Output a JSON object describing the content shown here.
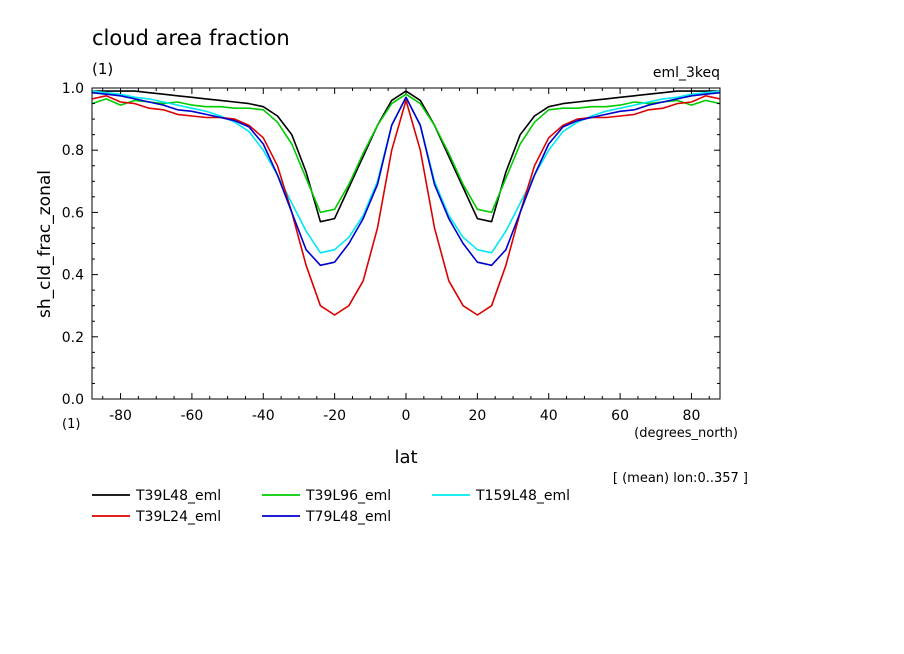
{
  "chart_data": {
    "type": "line",
    "title": "cloud area fraction",
    "subtitle": "(1)",
    "experiment": "eml_3keq",
    "xlabel": "lat",
    "xunits": "(degrees_north)",
    "ylabel": "sh_cld_frac_zonal",
    "yunits": "(1)",
    "note": "[ (mean) lon:0..357 ]",
    "xlim": [
      -88,
      88
    ],
    "ylim": [
      0.0,
      1.0
    ],
    "xticks": [
      -80,
      -60,
      -40,
      -20,
      0,
      20,
      40,
      60,
      80
    ],
    "xtick_labels": [
      "-80",
      "-60",
      "-40",
      "-20",
      "0",
      "20",
      "40",
      "60",
      "80"
    ],
    "yticks": [
      0.0,
      0.2,
      0.4,
      0.6,
      0.8,
      1.0
    ],
    "ytick_labels": [
      "0.0",
      "0.2",
      "0.4",
      "0.6",
      "0.8",
      "1.0"
    ],
    "grid": false,
    "legend_position": "bottom",
    "x": [
      -88,
      -84,
      -80,
      -76,
      -72,
      -68,
      -64,
      -60,
      -56,
      -52,
      -48,
      -44,
      -40,
      -36,
      -32,
      -28,
      -24,
      -20,
      -16,
      -12,
      -8,
      -4,
      0,
      4,
      8,
      12,
      16,
      20,
      24,
      28,
      32,
      36,
      40,
      44,
      48,
      52,
      56,
      60,
      64,
      68,
      72,
      76,
      80,
      84,
      88
    ],
    "series": [
      {
        "name": "T39L48_eml",
        "color": "#000000",
        "values": [
          0.99,
          0.99,
          0.99,
          0.99,
          0.985,
          0.98,
          0.975,
          0.97,
          0.965,
          0.96,
          0.955,
          0.95,
          0.94,
          0.91,
          0.85,
          0.73,
          0.57,
          0.58,
          0.68,
          0.78,
          0.88,
          0.96,
          0.99,
          0.96,
          0.88,
          0.78,
          0.68,
          0.58,
          0.57,
          0.73,
          0.85,
          0.91,
          0.94,
          0.95,
          0.955,
          0.96,
          0.965,
          0.97,
          0.975,
          0.98,
          0.985,
          0.99,
          0.99,
          0.99,
          0.99
        ]
      },
      {
        "name": "T39L96_eml",
        "color": "#00cc00",
        "values": [
          0.95,
          0.965,
          0.945,
          0.96,
          0.955,
          0.95,
          0.955,
          0.945,
          0.94,
          0.94,
          0.935,
          0.935,
          0.93,
          0.89,
          0.82,
          0.71,
          0.6,
          0.61,
          0.69,
          0.79,
          0.88,
          0.95,
          0.98,
          0.95,
          0.88,
          0.79,
          0.69,
          0.61,
          0.6,
          0.71,
          0.82,
          0.89,
          0.93,
          0.935,
          0.935,
          0.94,
          0.94,
          0.945,
          0.955,
          0.95,
          0.955,
          0.96,
          0.945,
          0.96,
          0.95
        ]
      },
      {
        "name": "T159L48_eml",
        "color": "#00e8f0",
        "values": [
          0.99,
          0.985,
          0.98,
          0.97,
          0.965,
          0.955,
          0.945,
          0.935,
          0.925,
          0.91,
          0.89,
          0.86,
          0.8,
          0.72,
          0.63,
          0.54,
          0.47,
          0.48,
          0.52,
          0.59,
          0.7,
          0.88,
          0.97,
          0.88,
          0.7,
          0.59,
          0.52,
          0.48,
          0.47,
          0.54,
          0.63,
          0.72,
          0.8,
          0.86,
          0.89,
          0.91,
          0.925,
          0.935,
          0.945,
          0.955,
          0.965,
          0.97,
          0.98,
          0.985,
          0.99
        ]
      },
      {
        "name": "T39L24_eml",
        "color": "#dd0000",
        "values": [
          0.965,
          0.975,
          0.955,
          0.95,
          0.935,
          0.93,
          0.915,
          0.91,
          0.905,
          0.905,
          0.9,
          0.88,
          0.84,
          0.75,
          0.6,
          0.43,
          0.3,
          0.27,
          0.3,
          0.38,
          0.55,
          0.8,
          0.96,
          0.8,
          0.55,
          0.38,
          0.3,
          0.27,
          0.3,
          0.43,
          0.6,
          0.75,
          0.84,
          0.88,
          0.9,
          0.905,
          0.905,
          0.91,
          0.915,
          0.93,
          0.935,
          0.95,
          0.955,
          0.975,
          0.965
        ]
      },
      {
        "name": "T79L48_eml",
        "color": "#0000cc",
        "values": [
          0.985,
          0.98,
          0.975,
          0.965,
          0.955,
          0.945,
          0.93,
          0.925,
          0.915,
          0.905,
          0.895,
          0.875,
          0.82,
          0.72,
          0.6,
          0.48,
          0.43,
          0.44,
          0.5,
          0.58,
          0.69,
          0.88,
          0.97,
          0.88,
          0.69,
          0.58,
          0.5,
          0.44,
          0.43,
          0.48,
          0.6,
          0.72,
          0.82,
          0.875,
          0.895,
          0.905,
          0.915,
          0.925,
          0.93,
          0.945,
          0.955,
          0.965,
          0.975,
          0.98,
          0.985
        ]
      }
    ]
  }
}
